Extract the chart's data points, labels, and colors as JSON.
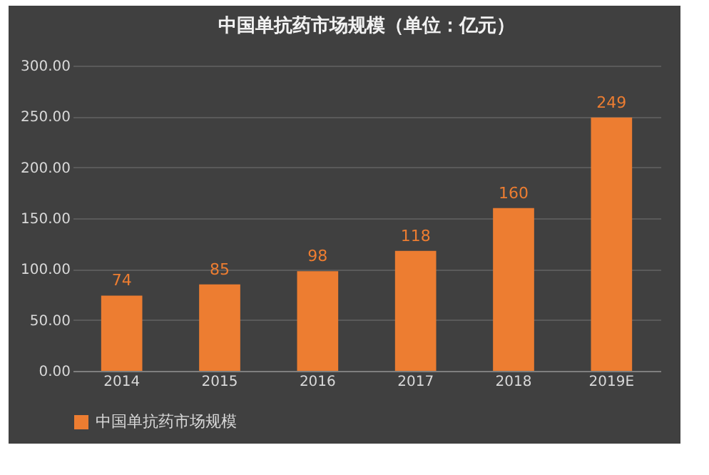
{
  "chart_data": {
    "type": "bar",
    "title": "中国单抗药市场规模（单位：亿元）",
    "categories": [
      "2014",
      "2015",
      "2016",
      "2017",
      "2018",
      "2019E"
    ],
    "series": [
      {
        "name": "中国单抗药市场规模",
        "color": "#ed7d31",
        "values": [
          74,
          85,
          98,
          118,
          160,
          249
        ]
      }
    ],
    "ylim": [
      0,
      300
    ],
    "yticks": [
      {
        "value": 0,
        "label": "0.00"
      },
      {
        "value": 50,
        "label": "50.00"
      },
      {
        "value": 100,
        "label": "100.00"
      },
      {
        "value": 150,
        "label": "150.00"
      },
      {
        "value": 200,
        "label": "200.00"
      },
      {
        "value": 250,
        "label": "250.00"
      },
      {
        "value": 300,
        "label": "300.00"
      }
    ],
    "grid": "y",
    "legend": "bottom",
    "data_labels": true
  }
}
